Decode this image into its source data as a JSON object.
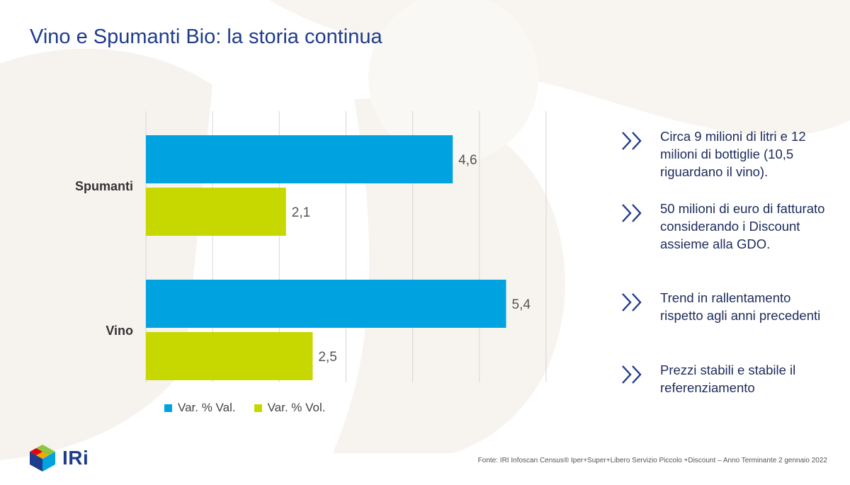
{
  "page": {
    "title": "Vino e Spumanti Bio: la storia continua",
    "source": "Fonte: IRI  Infoscan Census®  Iper+Super+Libero Servizio Piccolo +Discount – Anno Terminante 2 gennaio 2022",
    "logo_text": "IRi"
  },
  "colors": {
    "title": "#1f3c8c",
    "series_val": "#00a3e0",
    "series_vol": "#c6d800",
    "bullet_text": "#1c2b5a"
  },
  "chart_data": {
    "type": "bar",
    "orientation": "horizontal",
    "categories": [
      "Spumanti",
      "Vino"
    ],
    "series": [
      {
        "name": "Var. % Val.",
        "values": [
          4.6,
          5.4
        ],
        "labels": [
          "4,6",
          "5,4"
        ]
      },
      {
        "name": "Var. % Vol.",
        "values": [
          2.1,
          2.5
        ],
        "labels": [
          "2,1",
          "2,5"
        ]
      }
    ],
    "xlim": [
      0,
      6
    ],
    "grid": true,
    "legend": "bottom"
  },
  "bullets": [
    {
      "text": "Circa 9 milioni di litri e 12 milioni di bottiglie (10,5 riguardano il vino)."
    },
    {
      "text": "50 milioni di euro di fatturato considerando i Discount assieme alla GDO."
    },
    {
      "text": "Trend in rallentamento rispetto agli anni precedenti"
    },
    {
      "text": "Prezzi stabili e stabile il referenziamento"
    }
  ]
}
